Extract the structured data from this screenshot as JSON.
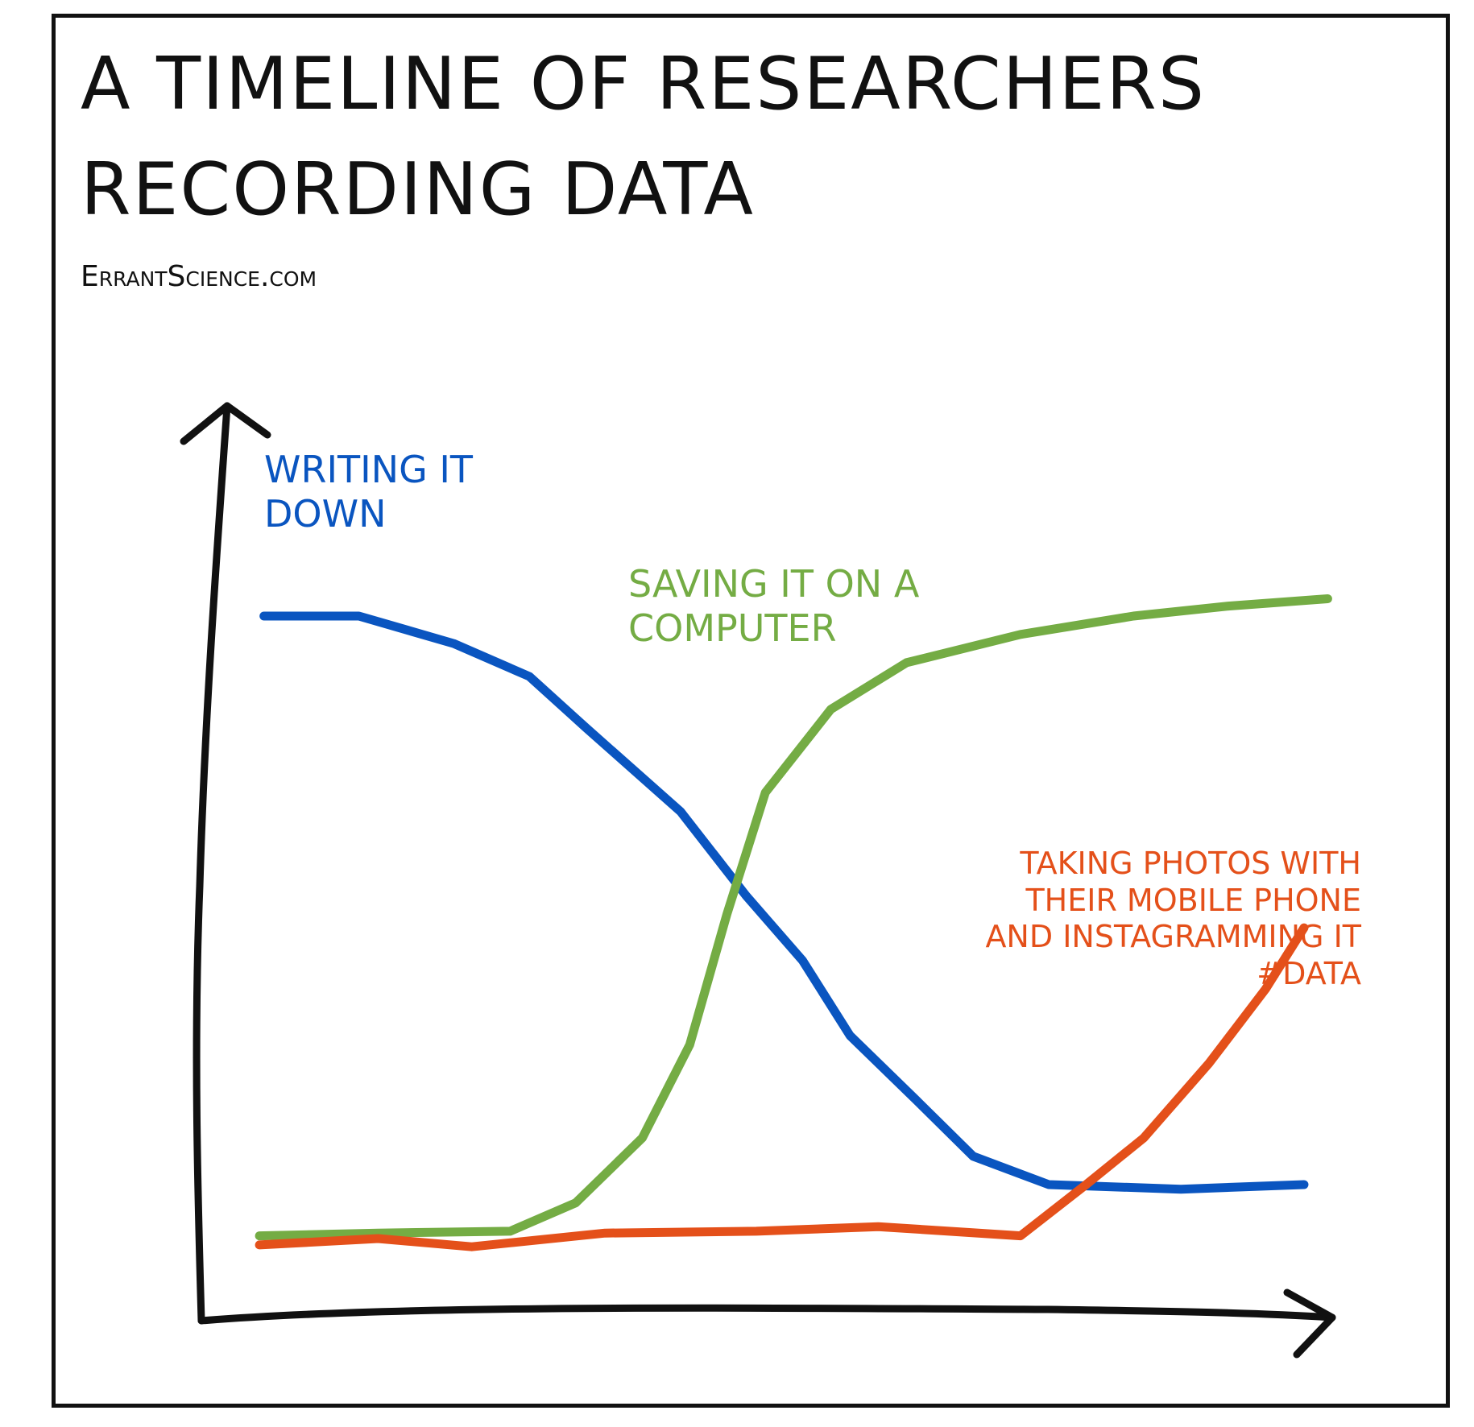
{
  "chart_data": {
    "type": "line",
    "title": "A TIMELINE OF RESEARCHERS RECORDING DATA",
    "source": "ErrantScience.com",
    "xlim": [
      0,
      100
    ],
    "ylim": [
      0,
      100
    ],
    "series": [
      {
        "name": "WRITING IT DOWN",
        "color": "#0a55c0",
        "x": [
          5.4,
          13.8,
          22.2,
          28.9,
          33.9,
          42.3,
          48.1,
          53.1,
          57.3,
          63.2,
          68.2,
          74.9,
          86.6,
          97.5
        ],
        "values": [
          77,
          77,
          74,
          70.4,
          64.8,
          55.6,
          46.4,
          39.3,
          31.1,
          24,
          17.9,
          14.8,
          14.3,
          14.8
        ]
      },
      {
        "name": "SAVING IT ON A COMPUTER",
        "color": "#74ac44",
        "x": [
          5,
          15.5,
          27.2,
          33,
          38.9,
          43.1,
          46.4,
          49.8,
          55.6,
          62.3,
          72.4,
          82.4,
          90.8,
          99.6
        ],
        "values": [
          9.2,
          9.5,
          9.7,
          12.8,
          19.9,
          30.1,
          44.4,
          57.7,
          66.8,
          71.9,
          75,
          77,
          78.1,
          78.9
        ]
      },
      {
        "name": "TAKING PHOTOS WITH THEIR MOBILE PHONE AND INSTAGRAMMING IT #DATA",
        "color": "#e4501a",
        "x": [
          5,
          15.5,
          23.8,
          35.6,
          49,
          59.8,
          72.4,
          78.2,
          83.3,
          89.1,
          94.1,
          97.5
        ],
        "values": [
          8.2,
          8.9,
          8,
          9.5,
          9.7,
          10.2,
          9.2,
          14.8,
          19.9,
          28.1,
          36.2,
          42.9
        ]
      }
    ]
  }
}
